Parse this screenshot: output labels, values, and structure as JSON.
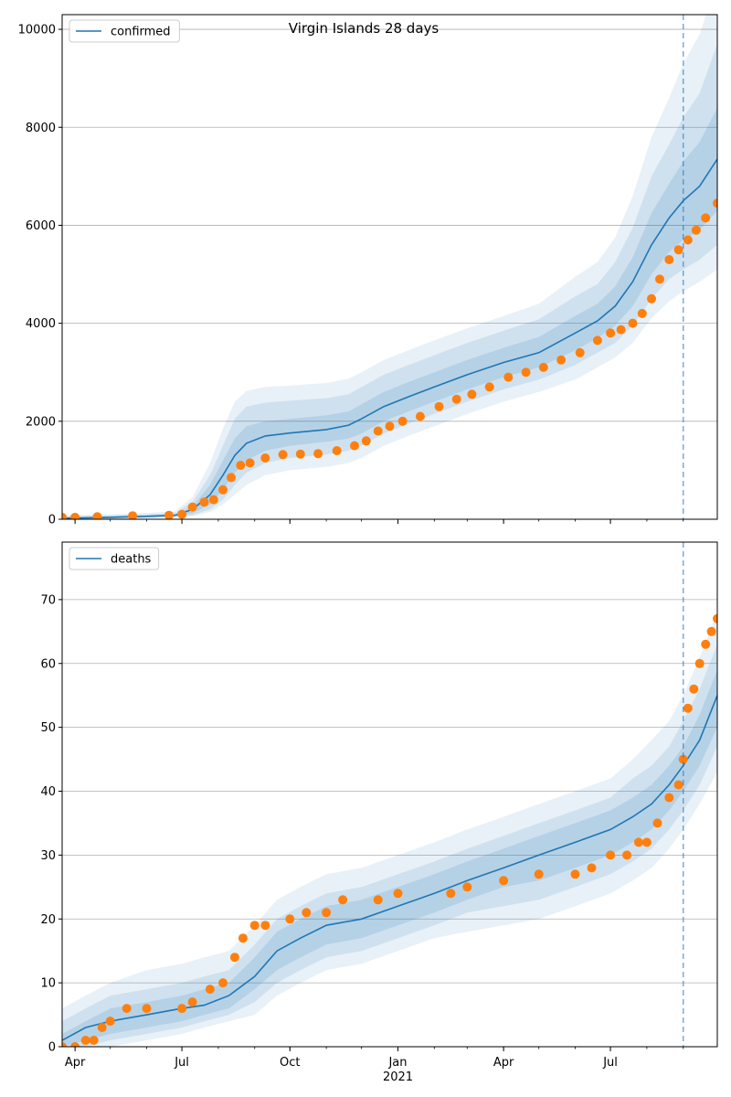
{
  "figure": {
    "suptitle": "Virgin Islands 28 days",
    "colors": {
      "model": "#1f77b4",
      "observed": "#ff7f0e",
      "grid": "#b0b0b0",
      "band": "#1f77b4"
    }
  },
  "chart_data": [
    {
      "type": "line",
      "legend": {
        "label": "confirmed",
        "placement": "upper left"
      },
      "xaxis": {
        "type": "date",
        "range": [
          "2020-03-21",
          "2021-09-30"
        ],
        "ticks": [
          {
            "date": "2020-04-01",
            "label": "Apr"
          },
          {
            "date": "2020-07-01",
            "label": "Jul"
          },
          {
            "date": "2020-10-01",
            "label": "Oct"
          },
          {
            "date": "2021-01-01",
            "label": "Jan"
          },
          {
            "date": "2021-04-01",
            "label": "Apr"
          },
          {
            "date": "2021-07-01",
            "label": "Jul"
          }
        ],
        "year_label": "2021"
      },
      "yaxis": {
        "ylim": [
          0,
          10300
        ],
        "ticks": [
          "0",
          "2000",
          "4000",
          "6000",
          "8000",
          "10000"
        ]
      },
      "grid": "horizontal",
      "forecast_start": "2021-09-01",
      "series": [
        {
          "name": "confirmed",
          "kind": "model",
          "x": [
            "2020-03-21",
            "2020-05-01",
            "2020-06-01",
            "2020-06-25",
            "2020-07-10",
            "2020-07-25",
            "2020-08-05",
            "2020-08-15",
            "2020-08-25",
            "2020-09-10",
            "2020-10-01",
            "2020-11-01",
            "2020-11-20",
            "2020-12-01",
            "2020-12-20",
            "2021-01-10",
            "2021-02-01",
            "2021-03-01",
            "2021-04-01",
            "2021-05-01",
            "2021-06-01",
            "2021-06-20",
            "2021-07-05",
            "2021-07-20",
            "2021-08-05",
            "2021-08-20",
            "2021-09-01",
            "2021-09-15",
            "2021-09-30"
          ],
          "y": [
            20,
            40,
            60,
            80,
            200,
            500,
            900,
            1300,
            1550,
            1700,
            1760,
            1830,
            1920,
            2050,
            2300,
            2500,
            2700,
            2950,
            3200,
            3400,
            3800,
            4050,
            4350,
            4850,
            5600,
            6150,
            6500,
            6800,
            7350
          ],
          "bands": [
            {
              "lower": [
                0,
                20,
                40,
                60,
                120,
                300,
                600,
                950,
                1200,
                1400,
                1500,
                1580,
                1650,
                1750,
                2000,
                2200,
                2400,
                2650,
                2900,
                3100,
                3450,
                3700,
                3950,
                4350,
                5000,
                5450,
                5700,
                5900,
                6300
              ],
              "upper": [
                40,
                60,
                80,
                100,
                260,
                700,
                1200,
                1650,
                1900,
                2000,
                2050,
                2120,
                2200,
                2350,
                2600,
                2800,
                3000,
                3250,
                3500,
                3720,
                4150,
                4400,
                4750,
                5350,
                6250,
                6850,
                7300,
                7700,
                8400
              ]
            },
            {
              "lower": [
                0,
                10,
                30,
                50,
                80,
                200,
                400,
                700,
                950,
                1150,
                1250,
                1320,
                1400,
                1500,
                1750,
                1950,
                2150,
                2400,
                2650,
                2850,
                3150,
                3400,
                3600,
                3950,
                4500,
                4900,
                5100,
                5300,
                5600
              ],
              "upper": [
                60,
                80,
                100,
                130,
                350,
                900,
                1500,
                2050,
                2300,
                2380,
                2420,
                2470,
                2550,
                2700,
                2950,
                3150,
                3350,
                3600,
                3850,
                4080,
                4550,
                4800,
                5250,
                5950,
                7000,
                7650,
                8200,
                8700,
                9700
              ]
            },
            {
              "lower": [
                0,
                0,
                20,
                40,
                60,
                150,
                300,
                500,
                700,
                900,
                1000,
                1070,
                1150,
                1250,
                1500,
                1700,
                1900,
                2150,
                2400,
                2600,
                2850,
                3100,
                3300,
                3600,
                4100,
                4450,
                4650,
                4850,
                5100
              ],
              "upper": [
                80,
                100,
                130,
                160,
                450,
                1150,
                1850,
                2400,
                2620,
                2700,
                2730,
                2780,
                2870,
                3000,
                3250,
                3450,
                3650,
                3900,
                4150,
                4400,
                4950,
                5250,
                5750,
                6600,
                7800,
                8600,
                9300,
                9900,
                11000
              ]
            }
          ]
        },
        {
          "name": "observed",
          "kind": "observed",
          "x": [
            "2020-03-21",
            "2020-04-01",
            "2020-04-20",
            "2020-05-20",
            "2020-06-20",
            "2020-07-01",
            "2020-07-10",
            "2020-07-20",
            "2020-07-28",
            "2020-08-05",
            "2020-08-12",
            "2020-08-20",
            "2020-08-28",
            "2020-09-10",
            "2020-09-25",
            "2020-10-10",
            "2020-10-25",
            "2020-11-10",
            "2020-11-25",
            "2020-12-05",
            "2020-12-15",
            "2020-12-25",
            "2021-01-05",
            "2021-01-20",
            "2021-02-05",
            "2021-02-20",
            "2021-03-05",
            "2021-03-20",
            "2021-04-05",
            "2021-04-20",
            "2021-05-05",
            "2021-05-20",
            "2021-06-05",
            "2021-06-20",
            "2021-07-01",
            "2021-07-10",
            "2021-07-20",
            "2021-07-28",
            "2021-08-05",
            "2021-08-12",
            "2021-08-20",
            "2021-08-28",
            "2021-09-05",
            "2021-09-12",
            "2021-09-20",
            "2021-09-30"
          ],
          "y": [
            40,
            40,
            50,
            70,
            80,
            100,
            250,
            350,
            400,
            600,
            850,
            1100,
            1150,
            1250,
            1320,
            1330,
            1340,
            1400,
            1500,
            1600,
            1800,
            1900,
            2000,
            2100,
            2300,
            2450,
            2550,
            2700,
            2900,
            3000,
            3100,
            3250,
            3400,
            3650,
            3800,
            3870,
            4000,
            4200,
            4500,
            4900,
            5300,
            5500,
            5700,
            5900,
            6150,
            6450
          ]
        }
      ]
    },
    {
      "type": "line",
      "legend": {
        "label": "deaths",
        "placement": "upper left"
      },
      "xaxis": {
        "type": "date",
        "range": [
          "2020-03-21",
          "2021-09-30"
        ],
        "ticks": [
          {
            "date": "2020-04-01",
            "label": "Apr"
          },
          {
            "date": "2020-07-01",
            "label": "Jul"
          },
          {
            "date": "2020-10-01",
            "label": "Oct"
          },
          {
            "date": "2021-01-01",
            "label": "Jan"
          },
          {
            "date": "2021-04-01",
            "label": "Apr"
          },
          {
            "date": "2021-07-01",
            "label": "Jul"
          }
        ],
        "year_label": "2021"
      },
      "yaxis": {
        "ylim": [
          0,
          79
        ],
        "ticks": [
          "0",
          "10",
          "20",
          "30",
          "40",
          "50",
          "60",
          "70"
        ]
      },
      "grid": "horizontal",
      "forecast_start": "2021-09-01",
      "series": [
        {
          "name": "deaths",
          "kind": "model",
          "x": [
            "2020-03-21",
            "2020-04-10",
            "2020-05-01",
            "2020-06-01",
            "2020-07-01",
            "2020-07-20",
            "2020-08-10",
            "2020-09-01",
            "2020-09-20",
            "2020-10-10",
            "2020-11-01",
            "2020-12-01",
            "2021-01-01",
            "2021-02-01",
            "2021-03-01",
            "2021-04-01",
            "2021-05-01",
            "2021-06-01",
            "2021-07-01",
            "2021-07-20",
            "2021-08-05",
            "2021-08-20",
            "2021-09-01",
            "2021-09-15",
            "2021-09-30"
          ],
          "y": [
            1,
            3,
            4,
            5,
            6,
            6.5,
            8,
            11,
            15,
            17,
            19,
            20,
            22,
            24,
            26,
            28,
            30,
            32,
            34,
            36,
            38,
            41,
            44,
            48,
            55
          ],
          "bands": [
            {
              "lower": [
                0,
                1,
                2,
                3,
                4,
                5,
                6,
                9,
                12,
                14,
                16,
                17,
                19,
                21,
                23,
                25,
                26,
                28,
                30,
                32,
                34,
                37,
                40,
                44,
                50
              ],
              "upper": [
                2,
                4,
                6,
                7,
                8,
                9,
                10,
                14,
                18,
                20,
                22,
                23,
                25,
                27,
                29,
                31,
                33,
                35,
                37,
                39,
                41,
                44,
                47,
                52,
                59
              ]
            },
            {
              "lower": [
                0,
                0,
                1,
                2,
                3,
                4,
                5,
                7,
                10,
                12,
                14,
                15,
                17,
                19,
                21,
                22,
                23,
                25,
                27,
                29,
                31,
                34,
                37,
                41,
                47
              ],
              "upper": [
                4,
                6,
                8,
                9,
                10,
                11,
                12,
                16,
                20,
                22,
                24,
                25,
                27,
                29,
                31,
                33,
                35,
                37,
                39,
                42,
                44,
                47,
                51,
                56,
                63
              ]
            },
            {
              "lower": [
                0,
                0,
                0,
                1,
                2,
                3,
                4,
                5,
                8,
                10,
                12,
                13,
                15,
                17,
                18,
                19,
                20,
                22,
                24,
                26,
                28,
                31,
                34,
                38,
                43
              ],
              "upper": [
                6,
                8,
                10,
                12,
                13,
                14,
                15,
                19,
                23,
                25,
                27,
                28,
                30,
                32,
                34,
                36,
                38,
                40,
                42,
                45,
                48,
                51,
                55,
                61,
                68
              ]
            }
          ]
        },
        {
          "name": "observed",
          "kind": "observed",
          "x": [
            "2020-03-21",
            "2020-04-01",
            "2020-04-10",
            "2020-04-17",
            "2020-04-24",
            "2020-05-01",
            "2020-05-15",
            "2020-06-01",
            "2020-07-01",
            "2020-07-10",
            "2020-07-25",
            "2020-08-05",
            "2020-08-15",
            "2020-08-22",
            "2020-09-01",
            "2020-09-10",
            "2020-10-01",
            "2020-10-15",
            "2020-11-01",
            "2020-11-15",
            "2020-12-15",
            "2021-01-01",
            "2021-02-15",
            "2021-03-01",
            "2021-04-01",
            "2021-05-01",
            "2021-06-01",
            "2021-06-15",
            "2021-07-01",
            "2021-07-15",
            "2021-07-25",
            "2021-08-01",
            "2021-08-10",
            "2021-08-20",
            "2021-08-28",
            "2021-09-01",
            "2021-09-05",
            "2021-09-10",
            "2021-09-15",
            "2021-09-20",
            "2021-09-25",
            "2021-09-30"
          ],
          "y": [
            0,
            0,
            1,
            1,
            3,
            4,
            6,
            6,
            6,
            7,
            9,
            10,
            14,
            17,
            19,
            19,
            20,
            21,
            21,
            23,
            23,
            24,
            24,
            25,
            26,
            27,
            27,
            28,
            30,
            30,
            32,
            32,
            35,
            39,
            41,
            45,
            53,
            56,
            60,
            63,
            65,
            67
          ]
        }
      ]
    }
  ]
}
